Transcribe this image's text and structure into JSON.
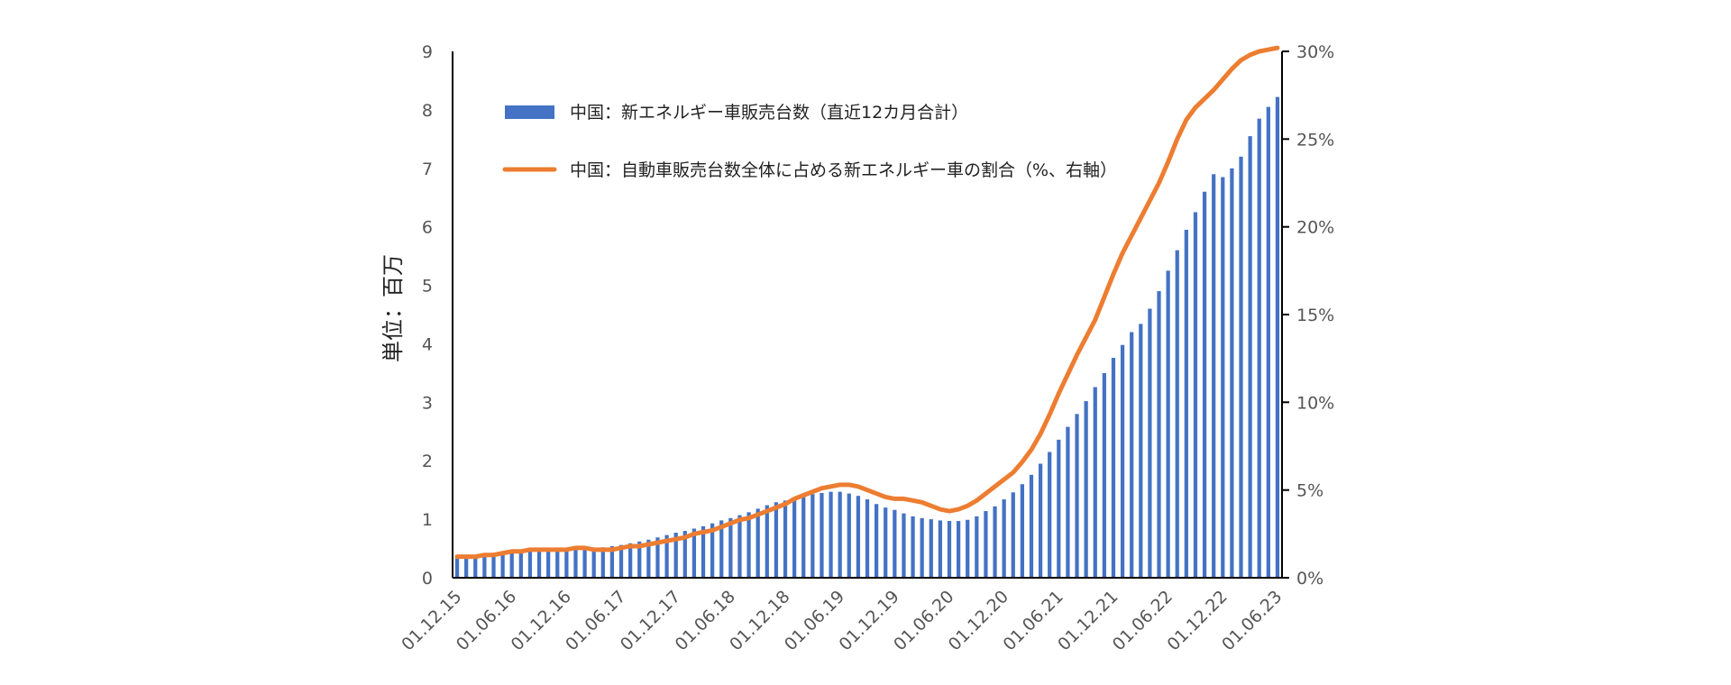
{
  "chart_data": {
    "type": "bar+line",
    "ylabel": "単位：百万",
    "ylim": [
      0,
      9
    ],
    "y_ticks": [
      "0",
      "1",
      "2",
      "3",
      "4",
      "5",
      "6",
      "7",
      "8",
      "9"
    ],
    "y2lim": [
      0,
      30
    ],
    "y2_ticks": [
      "0%",
      "5%",
      "10%",
      "15%",
      "20%",
      "25%",
      "30%"
    ],
    "x_ticks": [
      "01.12.15",
      "01.06.16",
      "01.12.16",
      "01.06.17",
      "01.12.17",
      "01.06.18",
      "01.12.18",
      "01.06.19",
      "01.12.19",
      "01.06.20",
      "01.12.20",
      "01.06.21",
      "01.12.21",
      "01.06.22",
      "01.12.22",
      "01.06.23"
    ],
    "x_tick_index": [
      0,
      6,
      12,
      18,
      24,
      30,
      36,
      42,
      48,
      54,
      60,
      66,
      72,
      78,
      84,
      90
    ],
    "legend_placement": "top-left",
    "colors": {
      "bars": "#4472c4",
      "line": "#ed7d31",
      "axis": "#000000"
    },
    "series": [
      {
        "name": "中国：新エネルギー車販売台数（直近12カ月合計）",
        "kind": "bar",
        "axis": "left",
        "values": [
          0.33,
          0.34,
          0.35,
          0.37,
          0.38,
          0.4,
          0.42,
          0.44,
          0.45,
          0.46,
          0.47,
          0.49,
          0.5,
          0.5,
          0.5,
          0.51,
          0.52,
          0.54,
          0.56,
          0.59,
          0.62,
          0.65,
          0.69,
          0.73,
          0.77,
          0.8,
          0.84,
          0.88,
          0.93,
          0.98,
          1.02,
          1.07,
          1.12,
          1.18,
          1.24,
          1.29,
          1.32,
          1.36,
          1.4,
          1.43,
          1.45,
          1.47,
          1.47,
          1.44,
          1.4,
          1.34,
          1.26,
          1.2,
          1.16,
          1.1,
          1.05,
          1.02,
          1.0,
          0.98,
          0.97,
          0.97,
          0.99,
          1.05,
          1.14,
          1.22,
          1.34,
          1.46,
          1.6,
          1.76,
          1.95,
          2.15,
          2.36,
          2.58,
          2.8,
          3.02,
          3.26,
          3.5,
          3.76,
          3.98,
          4.2,
          4.34,
          4.6,
          4.9,
          5.25,
          5.6,
          5.95,
          6.25,
          6.6,
          6.9,
          6.85,
          7.0,
          7.2,
          7.55,
          7.85,
          8.05,
          8.22
        ]
      },
      {
        "name": "中国：自動車販売台数全体に占める新エネルギー車の割合（%、右軸）",
        "kind": "line",
        "axis": "right",
        "values": [
          1.2,
          1.2,
          1.2,
          1.3,
          1.3,
          1.4,
          1.5,
          1.5,
          1.6,
          1.6,
          1.6,
          1.6,
          1.6,
          1.7,
          1.7,
          1.6,
          1.6,
          1.6,
          1.7,
          1.8,
          1.8,
          1.9,
          2.0,
          2.1,
          2.2,
          2.3,
          2.5,
          2.6,
          2.7,
          2.9,
          3.1,
          3.3,
          3.4,
          3.6,
          3.8,
          4.0,
          4.2,
          4.5,
          4.7,
          4.9,
          5.1,
          5.2,
          5.3,
          5.3,
          5.2,
          5.0,
          4.8,
          4.6,
          4.5,
          4.5,
          4.4,
          4.3,
          4.1,
          3.9,
          3.8,
          3.9,
          4.1,
          4.4,
          4.8,
          5.2,
          5.6,
          6.0,
          6.6,
          7.3,
          8.2,
          9.3,
          10.5,
          11.6,
          12.7,
          13.7,
          14.7,
          16.0,
          17.3,
          18.5,
          19.5,
          20.5,
          21.5,
          22.5,
          23.7,
          25.0,
          26.1,
          26.8,
          27.3,
          27.8,
          28.4,
          29.0,
          29.5,
          29.8,
          30.0,
          30.1,
          30.2
        ]
      }
    ]
  }
}
